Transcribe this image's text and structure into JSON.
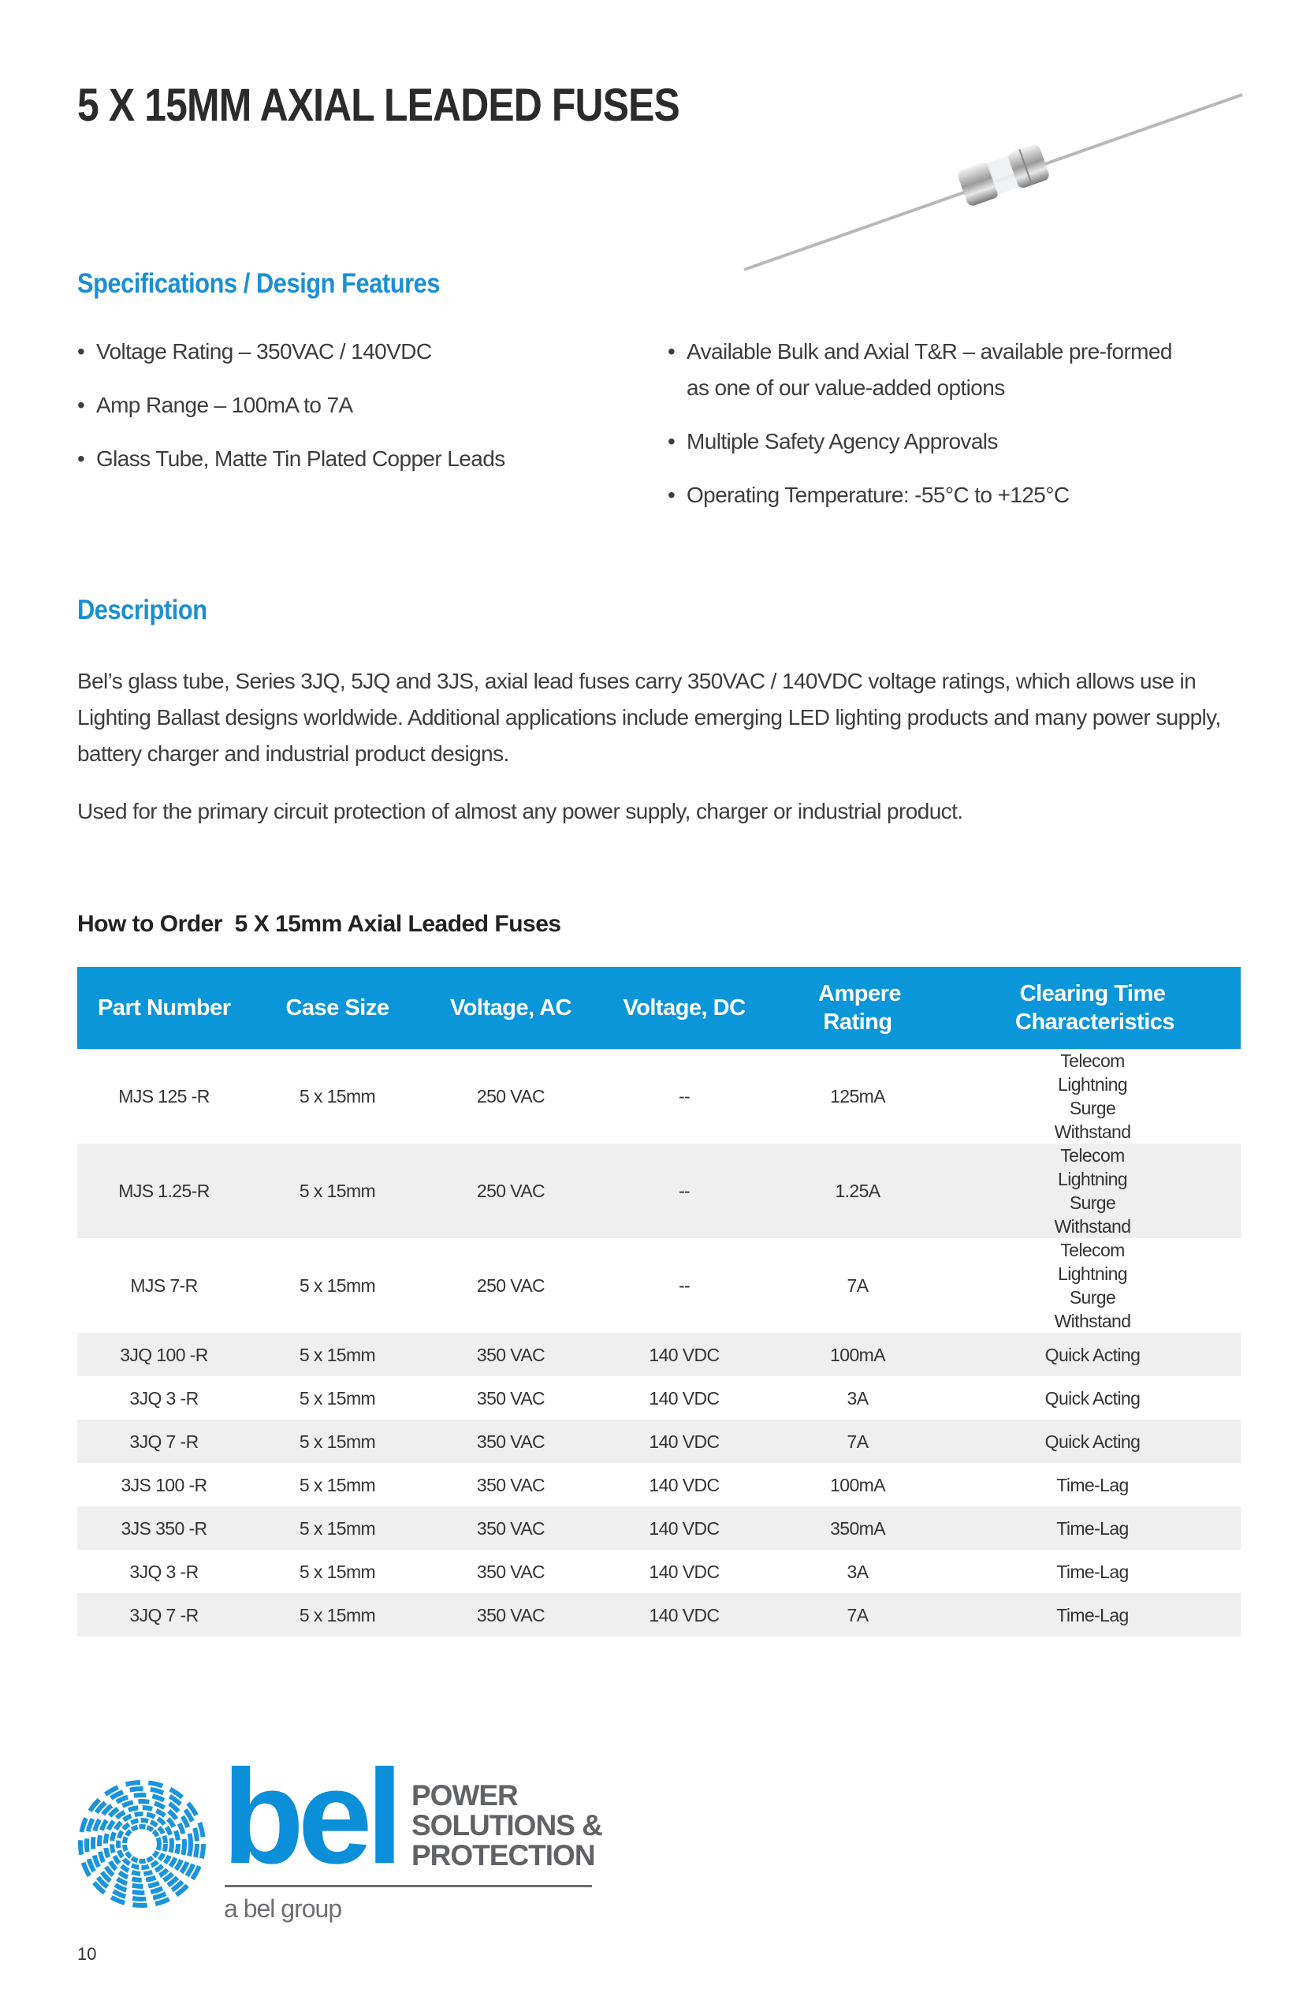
{
  "title": "5 X 15MM AXIAL LEADED FUSES",
  "specs": {
    "heading": "Specifications / Design Features",
    "left": [
      "Voltage Rating – 350VAC / 140VDC",
      "Amp Range – 100mA to 7A",
      "Glass Tube, Matte Tin Plated Copper Leads"
    ],
    "right": [
      {
        "line1": "Available Bulk and Axial T&R – available pre-formed",
        "line2": "as one of our value-added options"
      },
      {
        "line1": "Multiple Safety Agency Approvals"
      },
      {
        "line1": "Operating Temperature: -55°C to +125°C"
      }
    ]
  },
  "description": {
    "heading": "Description",
    "p1": "Bel’s glass tube, Series 3JQ, 5JQ and 3JS, axial lead fuses carry 350VAC / 140VDC voltage ratings, which allows use in Lighting Ballast designs worldwide. Additional applications include emerging LED lighting products and many power supply, battery charger and industrial product designs.",
    "p2": "Used for the primary circuit protection of almost any power supply, charger or industrial product."
  },
  "order": {
    "title": "How to Order  5 X 15mm Axial Leaded Fuses",
    "columns": [
      "Part Number",
      "Case Size",
      "Voltage, AC",
      "Voltage, DC",
      "Ampere Rating",
      "Clearing Time Characteristics"
    ],
    "rows": [
      [
        "MJS 125 -R",
        "5 x 15mm",
        "250 VAC",
        "--",
        "125mA",
        "Telecom Lightning Surge Withstand"
      ],
      [
        "MJS 1.25-R",
        "5 x 15mm",
        "250 VAC",
        "--",
        "1.25A",
        "Telecom Lightning Surge Withstand"
      ],
      [
        "MJS 7-R",
        "5 x 15mm",
        "250 VAC",
        "--",
        "7A",
        "Telecom Lightning Surge Withstand"
      ],
      [
        "3JQ 100 -R",
        "5 x 15mm",
        "350 VAC",
        "140 VDC",
        "100mA",
        "Quick Acting"
      ],
      [
        "3JQ 3 -R",
        "5 x 15mm",
        "350 VAC",
        "140 VDC",
        "3A",
        "Quick Acting"
      ],
      [
        "3JQ 7 -R",
        "5 x 15mm",
        "350 VAC",
        "140 VDC",
        "7A",
        "Quick Acting"
      ],
      [
        "3JS 100 -R",
        "5 x 15mm",
        "350 VAC",
        "140 VDC",
        "100mA",
        "Time-Lag"
      ],
      [
        "3JS 350 -R",
        "5 x 15mm",
        "350 VAC",
        "140 VDC",
        "350mA",
        "Time-Lag"
      ],
      [
        "3JQ 3 -R",
        "5 x 15mm",
        "350 VAC",
        "140 VDC",
        "3A",
        "Time-Lag"
      ],
      [
        "3JQ 7 -R",
        "5 x 15mm",
        "350 VAC",
        "140 VDC",
        "7A",
        "Time-Lag"
      ]
    ]
  },
  "logo": {
    "brand": "bel",
    "line1": "POWER",
    "line2": "SOLUTIONS &",
    "line3": "PROTECTION",
    "tagline": "a bel group"
  },
  "page_number": "10",
  "colors": {
    "accent": "#0a96d8",
    "heading": "#1b8fd2",
    "logo_gray": "#606266",
    "row_alt": "#efefef"
  }
}
